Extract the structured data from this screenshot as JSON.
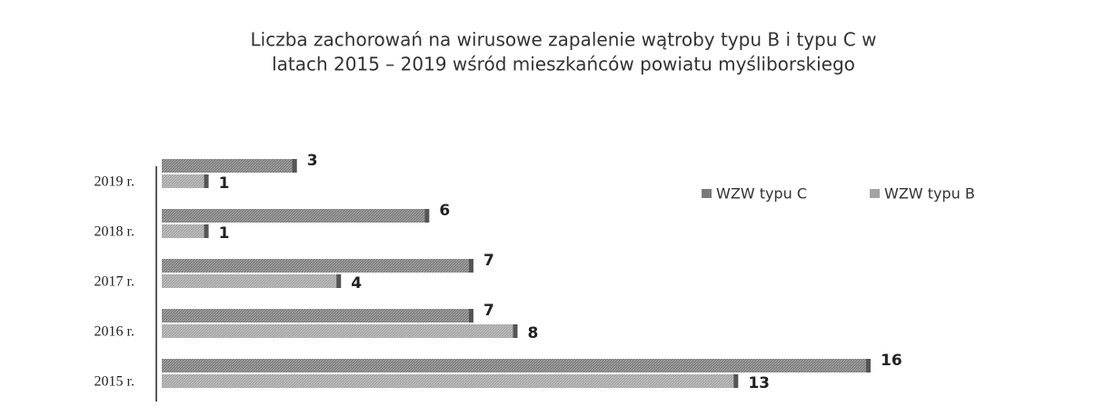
{
  "chart_data": {
    "type": "bar",
    "orientation": "horizontal",
    "title": [
      "Liczba zachorowań na wirusowe zapalenie wątroby typu B i typu C  w",
      "latach 2015 – 2019  wśród mieszkańców powiatu myśliborskiego"
    ],
    "categories": [
      "2019 r.",
      "2018 r.",
      "2017 r.",
      "2016 r.",
      "2015 r."
    ],
    "series": [
      {
        "name": "WZW typu C",
        "color": "#7a7a7a",
        "values": [
          3,
          6,
          7,
          7,
          16
        ]
      },
      {
        "name": "WZW typu B",
        "color": "#a3a3a3",
        "values": [
          1,
          1,
          4,
          8,
          13
        ]
      }
    ],
    "legend": "right"
  }
}
